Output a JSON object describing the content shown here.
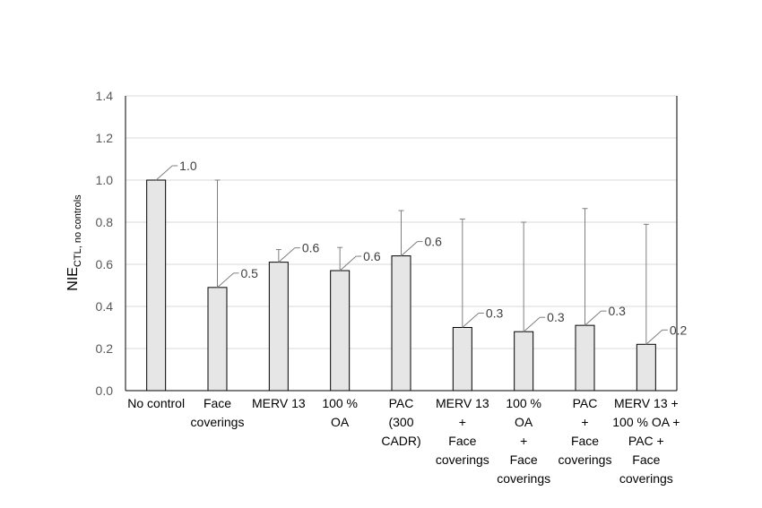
{
  "chart_data": {
    "type": "bar",
    "categories": [
      [
        "No control"
      ],
      [
        "Face",
        "coverings"
      ],
      [
        "MERV 13"
      ],
      [
        "100 %",
        "OA"
      ],
      [
        "PAC",
        "(300",
        "CADR)"
      ],
      [
        "MERV 13",
        "+",
        "Face",
        "coverings"
      ],
      [
        "100 %",
        "OA",
        "+",
        "Face",
        "coverings"
      ],
      [
        "PAC",
        "+",
        "Face",
        "coverings"
      ],
      [
        "MERV 13 +",
        "100 % OA +",
        "PAC +",
        "Face",
        "coverings"
      ]
    ],
    "values": [
      1.0,
      0.49,
      0.61,
      0.57,
      0.64,
      0.3,
      0.28,
      0.31,
      0.22
    ],
    "error_upper": [
      1.0,
      1.0,
      0.67,
      0.68,
      0.855,
      0.815,
      0.8,
      0.865,
      0.79
    ],
    "data_labels": [
      "1.0",
      "0.5",
      "0.6",
      "0.6",
      "0.6",
      "0.3",
      "0.3",
      "0.3",
      "0.2"
    ],
    "ylabel_main": "NIE",
    "ylabel_sub": "CTL, no controls",
    "ylim": [
      0,
      1.4
    ],
    "yticks": [
      "0.0",
      "0.2",
      "0.4",
      "0.6",
      "0.8",
      "1.0",
      "1.2",
      "1.4"
    ],
    "grid": true,
    "colors": {
      "bar_fill": "#e7e6e6",
      "bar_stroke": "#000000",
      "grid": "#d9d9d9",
      "error": "#7f7f7f"
    }
  }
}
